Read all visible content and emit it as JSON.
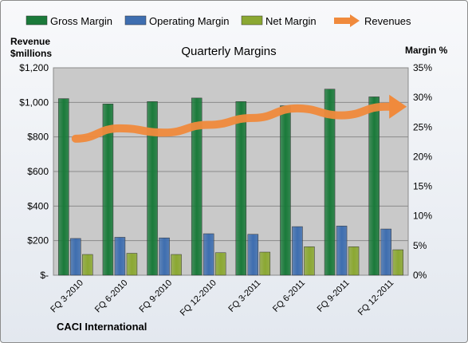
{
  "chart_data": {
    "type": "bar",
    "title": "Quarterly Margins",
    "left_axis_title_line1": "Revenue",
    "left_axis_title_line2": "$millions",
    "right_axis_title": "Margin %",
    "source_label": "CACI International",
    "categories": [
      "FQ 3-2010",
      "FQ 6-2010",
      "FQ 9-2010",
      "FQ 12-2010",
      "FQ 3-2011",
      "FQ 6-2011",
      "FQ 9-2011",
      "FQ 12-2011"
    ],
    "y_left": {
      "min": 0,
      "max": 1200,
      "ticks": [
        "$-",
        "$200",
        "$400",
        "$600",
        "$800",
        "$1,000",
        "$1,200"
      ],
      "tick_values": [
        0,
        200,
        400,
        600,
        800,
        1000,
        1200
      ]
    },
    "y_right": {
      "min": 0,
      "max": 35,
      "ticks": [
        "0%",
        "5%",
        "10%",
        "15%",
        "20%",
        "25%",
        "30%",
        "35%"
      ],
      "tick_values": [
        0,
        5,
        10,
        15,
        20,
        25,
        30,
        35
      ]
    },
    "series": [
      {
        "name": "Gross Margin",
        "type": "bar",
        "axis": "right",
        "color": "#1a7a3a",
        "values": [
          29.8,
          28.9,
          29.3,
          29.9,
          29.3,
          28.6,
          31.4,
          30.1
        ]
      },
      {
        "name": "Operating Margin",
        "type": "bar",
        "axis": "right",
        "color": "#3e6eb0",
        "values": [
          6.2,
          6.4,
          6.3,
          7.0,
          6.9,
          8.2,
          8.3,
          7.8
        ]
      },
      {
        "name": "Net Margin",
        "type": "bar",
        "axis": "right",
        "color": "#8ba832",
        "values": [
          3.5,
          3.7,
          3.5,
          3.8,
          3.9,
          4.8,
          4.8,
          4.3
        ]
      },
      {
        "name": "Revenues",
        "type": "line",
        "axis": "left",
        "color": "#f08a3c",
        "values": [
          790,
          850,
          825,
          870,
          910,
          965,
          925,
          975
        ]
      }
    ],
    "grid": true,
    "legend_position": "top"
  }
}
